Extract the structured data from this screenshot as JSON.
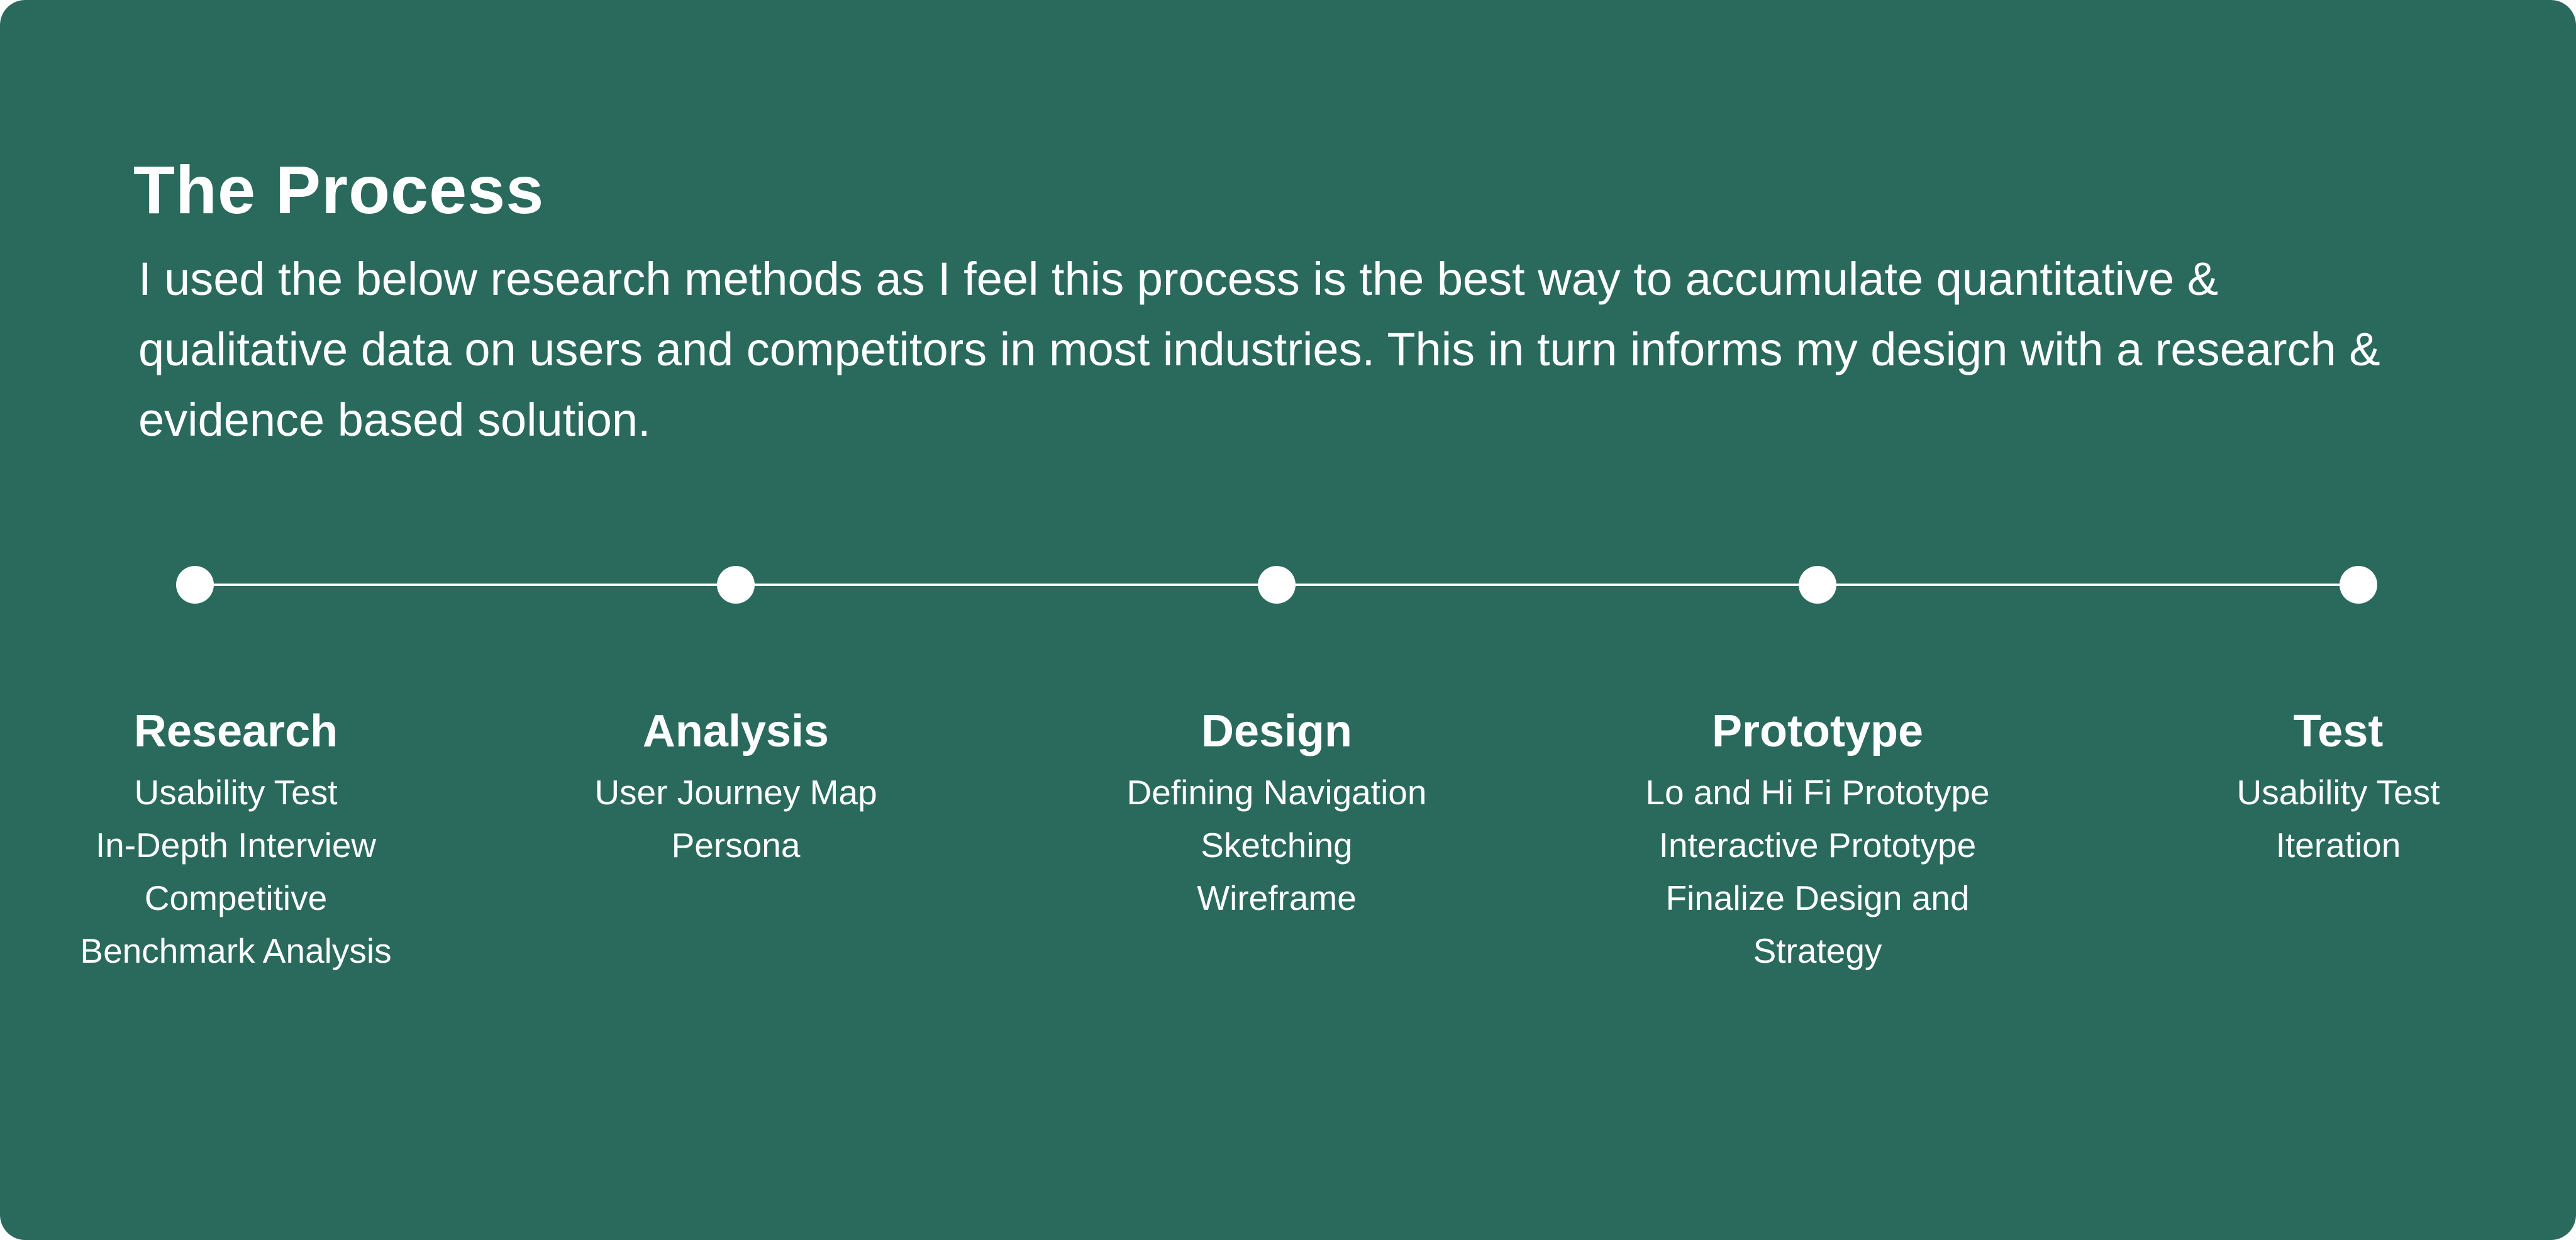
{
  "header": {
    "title": "The Process",
    "intro": "I used the below research methods as I feel this process is the best way to accumulate quantitative & qualitative data on users and competitors in most industries. This in turn informs my design with a research & evidence based solution."
  },
  "steps": [
    {
      "title": "Research",
      "items": [
        "Usability Test",
        "In-Depth Interview",
        "Competitive",
        "Benchmark Analysis"
      ]
    },
    {
      "title": "Analysis",
      "items": [
        "User Journey Map",
        "Persona"
      ]
    },
    {
      "title": "Design",
      "items": [
        "Defining Navigation",
        "Sketching",
        "Wireframe"
      ]
    },
    {
      "title": "Prototype",
      "items": [
        "Lo and Hi Fi Prototype",
        "Interactive Prototype",
        "Finalize Design and",
        "Strategy"
      ]
    },
    {
      "title": "Test",
      "items": [
        "Usability Test",
        "Iteration"
      ]
    }
  ],
  "colors": {
    "background": "#2a6a5d",
    "foreground": "#ffffff"
  }
}
